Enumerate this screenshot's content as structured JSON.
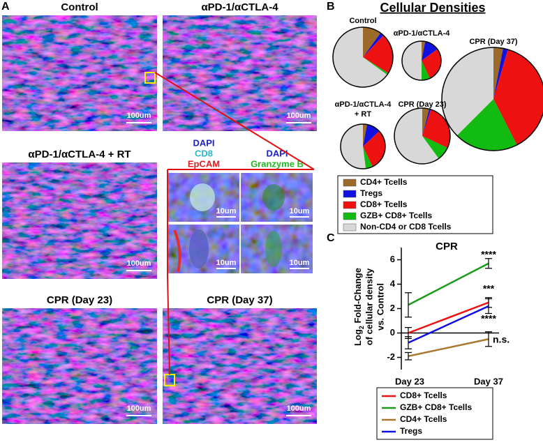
{
  "panel_labels": [
    "A",
    "B",
    "C"
  ],
  "micrographs": [
    {
      "title": "Control",
      "scale": "100um"
    },
    {
      "title": "αPD-1/αCTLA-4",
      "scale": "100um"
    },
    {
      "title": "αPD-1/αCTLA-4 + RT",
      "scale": "100um"
    },
    {
      "title": "CPR (Day 23)",
      "scale": "100um"
    },
    {
      "title": "CPR (Day 37)",
      "scale": "100um"
    }
  ],
  "insets": {
    "left_stains": [
      "DAPI",
      "CD8",
      "EpCAM"
    ],
    "right_stains": [
      "DAPI",
      "Granzyme B"
    ],
    "scales": [
      "10um",
      "10um",
      "10um",
      "10um"
    ]
  },
  "chart_data": [
    {
      "type": "pie",
      "title": "Cellular Densities",
      "categories": [
        "CD4+ Tcells",
        "Tregs",
        "CD8+ Tcells",
        "GZB+ CD8+ Tcells",
        "Non-CD4 or CD8 Tcells"
      ],
      "colors": [
        "#9c6b2a",
        "#1010e0",
        "#ee1111",
        "#11bb11",
        "#d8d8d8"
      ],
      "pies": [
        {
          "title": "Control",
          "values": [
            10,
            2,
            22,
            1,
            65
          ]
        },
        {
          "title": "αPD-1/αCTLA-4",
          "values": [
            3,
            12,
            28,
            7,
            50
          ]
        },
        {
          "title": "CPR (Day 37)",
          "values": [
            3,
            1.5,
            38,
            20,
            37.5
          ]
        },
        {
          "title": [
            "αPD-1/αCTLA-4",
            "+ RT"
          ],
          "values": [
            3,
            10,
            30,
            5,
            52
          ]
        },
        {
          "title": "CPR (Day 23)",
          "values": [
            4,
            1,
            27,
            8,
            60
          ]
        }
      ]
    },
    {
      "type": "line",
      "title": "CPR",
      "ylabel": [
        "Log",
        "2",
        " Fold-Change",
        "of cellular density",
        "vs. Control"
      ],
      "categories": [
        "Day 23",
        "Day 37"
      ],
      "ylim": [
        -3,
        7
      ],
      "yticks": [
        -2,
        0,
        2,
        4,
        6
      ],
      "series": [
        {
          "name": "CD8+ Tcells",
          "color": "#ee1111",
          "values": [
            0,
            2.5
          ],
          "errors": [
            0.45,
            0.4
          ]
        },
        {
          "name": "GZB+ CD8+ Tcells",
          "color": "#1a9a1a",
          "values": [
            2.3,
            5.7
          ],
          "errors": [
            1,
            0.4
          ]
        },
        {
          "name": "CD4+ Tcells",
          "color": "#a8782e",
          "values": [
            -1.9,
            -0.5
          ],
          "errors": [
            0.3,
            0.6
          ]
        },
        {
          "name": "Tregs",
          "color": "#1010e0",
          "values": [
            -0.8,
            2.2
          ],
          "errors": [
            0.5,
            0.6
          ]
        }
      ],
      "annotations": [
        "****",
        "***",
        "****",
        "n.s."
      ]
    }
  ]
}
